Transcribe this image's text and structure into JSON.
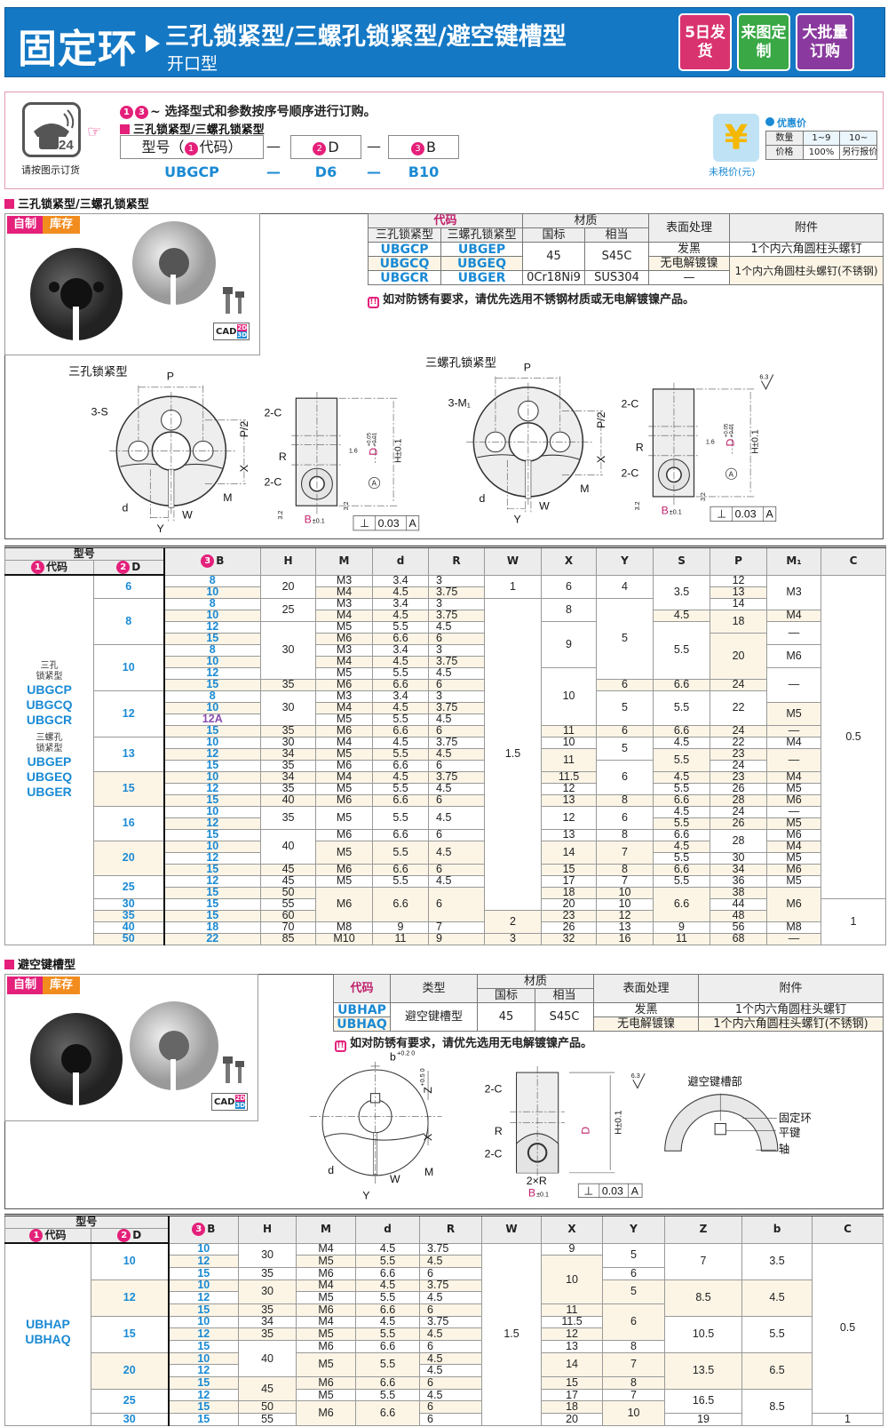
{
  "header": {
    "title": "固定环",
    "subtitle": "三孔锁紧型/三螺孔锁紧型/避空键槽型",
    "subtitle2": "开口型",
    "badges": [
      {
        "label": "5日发货",
        "color": "#d9336f"
      },
      {
        "label": "来图定制",
        "color": "#39a845"
      },
      {
        "label": "大批量订购",
        "color": "#8a3a9e"
      }
    ]
  },
  "order": {
    "phone_caption": "请按图示订货",
    "instruction": "~ 选择型式和参数按序号顺序进行订购。",
    "num1": "1",
    "num2": "2",
    "num3": "3",
    "type_label": "三孔锁紧型/三螺孔锁紧型",
    "box_code": "型号（",
    "box_code_tail": "代码）",
    "box_d": "D",
    "box_b": "B",
    "dash": "—",
    "example_code": "UBGCP",
    "example_d": "D6",
    "example_b": "B10",
    "price_caption": "未税价(元)",
    "discount_label": "优惠价",
    "price_table": [
      [
        "数量",
        "1~9",
        "10~"
      ],
      [
        "价格",
        "100%",
        "另行报价"
      ]
    ]
  },
  "section1": {
    "label": "三孔锁紧型/三螺孔锁紧型",
    "tag_a": "自制",
    "tag_b": "库存",
    "cad": "CAD",
    "cad_2d": "2D",
    "cad_3d": "3D",
    "spec": {
      "h_code": "代码",
      "h_material": "材质",
      "h_surface": "表面处理",
      "h_accessory": "附件",
      "h_type1": "三孔锁紧型",
      "h_type2": "三螺孔锁紧型",
      "h_gb": "国标",
      "h_eq": "相当",
      "rows": [
        [
          "UBGCP",
          "UBGEP"
        ],
        [
          "UBGCQ",
          "UBGEQ"
        ],
        [
          "UBGCR",
          "UBGER"
        ]
      ],
      "mat1_gb": "45",
      "mat1_eq": "S45C",
      "mat2_gb": "0Cr18Ni9",
      "mat2_eq": "SUS304",
      "surf1": "发黑",
      "surf2": "无电解镀镍",
      "surf3": "—",
      "acc1": "1个内六角圆柱头螺钉",
      "acc2": "1个内六角圆柱头螺钉(不锈钢)"
    },
    "note": "如对防锈有要求，请优先选用不锈钢材质或无电解镀镍产品。"
  },
  "drawings": {
    "lock3": {
      "title": "三孔锁紧型",
      "holes": "3-S"
    },
    "lock3m": {
      "title": "三螺孔锁紧型",
      "holes": "3-M₁"
    },
    "labels": {
      "P": "P",
      "P2": "P/2",
      "X": "X",
      "d": "d",
      "W": "W",
      "Y": "Y",
      "M": "M",
      "C": "2-C",
      "R": "R",
      "B": "B",
      "Btol": "±0.1",
      "H": "H±0.1",
      "D": "D",
      "Dtol_up": "+0.05",
      "Dtol_lo": "+0.01",
      "r16": "1.6",
      "r32": "3.2",
      "r63": "6.3",
      "tol": "0.03",
      "datum": "A",
      "perp": "⊥"
    },
    "keyway": {
      "b": "b",
      "btol": "+0.2 0",
      "Z": "Z",
      "Ztol": "+0.5 0",
      "twoR": "2×R",
      "detail": "避空键槽部",
      "ring": "固定环",
      "key": "平键",
      "shaft": "轴"
    }
  },
  "table1": {
    "h_model": "型号",
    "h_code": "代码",
    "h_code_num": "1",
    "h_D": "D",
    "h_D_num": "2",
    "h_B": "B",
    "h_B_num": "3",
    "columns": [
      "H",
      "M",
      "d",
      "R",
      "W",
      "X",
      "Y",
      "S",
      "P",
      "M₁",
      "C"
    ],
    "code_groups": [
      {
        "type": "三孔 锁紧型",
        "codes": [
          "UBGCP",
          "UBGCQ",
          "UBGCR"
        ]
      },
      {
        "type": "三螺孔 锁紧型",
        "codes": [
          "UBGEP",
          "UBGEQ",
          "UBGER"
        ]
      }
    ],
    "rows": [
      [
        "6",
        "8",
        "20",
        "M3",
        "3.4",
        "3",
        "1",
        "6",
        "4",
        "3.5",
        "12",
        "M3",
        "0.5"
      ],
      [
        null,
        "10",
        null,
        "M4",
        "4.5",
        "3.75",
        null,
        null,
        null,
        null,
        "13",
        null,
        null
      ],
      [
        "8",
        "8",
        "25",
        "M3",
        "3.4",
        "3",
        "1.5",
        "8",
        "5",
        null,
        "14",
        null,
        null
      ],
      [
        null,
        "10",
        null,
        "M4",
        "4.5",
        "3.75",
        null,
        null,
        null,
        "4.5",
        "18",
        "M4",
        null
      ],
      [
        null,
        "12",
        "30",
        "M5",
        "5.5",
        "4.5",
        null,
        "9",
        null,
        "5.5",
        null,
        "—",
        null
      ],
      [
        null,
        "15",
        null,
        "M6",
        "6.6",
        "6",
        null,
        null,
        null,
        null,
        "20",
        null,
        null
      ],
      [
        "10",
        "8",
        null,
        "M3",
        "3.4",
        "3",
        null,
        null,
        null,
        null,
        null,
        "M6",
        null
      ],
      [
        null,
        "10",
        null,
        "M4",
        "4.5",
        "3.75",
        null,
        null,
        null,
        null,
        null,
        null,
        null
      ],
      [
        null,
        "12",
        null,
        "M5",
        "5.5",
        "4.5",
        null,
        "10",
        null,
        null,
        null,
        "—",
        null
      ],
      [
        null,
        "15",
        "35",
        "M6",
        "6.6",
        "6",
        null,
        null,
        "6",
        "6.6",
        "24",
        null,
        null
      ],
      [
        "12",
        "8",
        "30",
        "M3",
        "3.4",
        "3",
        null,
        null,
        "5",
        "5.5",
        "22",
        null,
        null
      ],
      [
        null,
        "10",
        null,
        "M4",
        "4.5",
        "3.75",
        null,
        null,
        null,
        null,
        null,
        "M5",
        null
      ],
      [
        null,
        "12A",
        null,
        "M5",
        "5.5",
        "4.5",
        null,
        null,
        null,
        null,
        null,
        null,
        null
      ],
      [
        null,
        "15",
        "35",
        "M6",
        "6.6",
        "6",
        null,
        "11",
        "6",
        "6.6",
        "24",
        "—",
        null
      ],
      [
        "13",
        "10",
        "30",
        "M4",
        "4.5",
        "3.75",
        null,
        "10",
        "5",
        "4.5",
        "22",
        "M4",
        null
      ],
      [
        null,
        "12",
        "34",
        "M5",
        "5.5",
        "4.5",
        null,
        "11",
        null,
        "5.5",
        "23",
        "—",
        null
      ],
      [
        null,
        "15",
        "35",
        "M6",
        "6.6",
        "6",
        null,
        null,
        "6",
        null,
        "24",
        null,
        null
      ],
      [
        "15",
        "10",
        "34",
        "M4",
        "4.5",
        "3.75",
        null,
        "11.5",
        null,
        "4.5",
        "23",
        "M4",
        null
      ],
      [
        null,
        "12",
        "35",
        "M5",
        "5.5",
        "4.5",
        null,
        "12",
        null,
        "5.5",
        "26",
        "M5",
        null
      ],
      [
        null,
        "15",
        "40",
        "M6",
        "6.6",
        "6",
        null,
        "13",
        "8",
        "6.6",
        "28",
        "M6",
        null
      ],
      [
        "16",
        "10",
        "35",
        "M5",
        "5.5",
        "4.5",
        null,
        "12",
        "6",
        "4.5",
        "24",
        "—",
        null
      ],
      [
        null,
        "12",
        null,
        null,
        null,
        null,
        null,
        null,
        null,
        "5.5",
        "26",
        "M5",
        null
      ],
      [
        null,
        "15",
        "40",
        "M6",
        "6.6",
        "6",
        null,
        "13",
        "8",
        "6.6",
        "28",
        "M6",
        null
      ],
      [
        "20",
        "10",
        null,
        "M5",
        "5.5",
        "4.5",
        null,
        "14",
        "7",
        "4.5",
        null,
        "M4",
        null
      ],
      [
        null,
        "12",
        null,
        null,
        null,
        null,
        null,
        null,
        null,
        "5.5",
        "30",
        "M5",
        null
      ],
      [
        null,
        "15",
        "45",
        "M6",
        "6.6",
        "6",
        null,
        "15",
        "8",
        "6.6",
        "34",
        "M6",
        null
      ],
      [
        "25",
        "12",
        "45",
        "M5",
        "5.5",
        "4.5",
        null,
        "17",
        "7",
        "5.5",
        "36",
        "M5",
        null
      ],
      [
        null,
        "15",
        "50",
        "M6",
        "6.6",
        "6",
        null,
        "18",
        "10",
        "6.6",
        "38",
        "M6",
        null
      ],
      [
        "30",
        "15",
        "55",
        null,
        null,
        null,
        null,
        "20",
        "10",
        null,
        "44",
        null,
        "1"
      ],
      [
        "35",
        "15",
        "60",
        null,
        null,
        null,
        "2",
        "23",
        "12",
        null,
        "48",
        null,
        null
      ],
      [
        "40",
        "18",
        "70",
        "M8",
        "9",
        "7",
        null,
        "26",
        "13",
        "9",
        "56",
        "M8",
        null
      ],
      [
        "50",
        "22",
        "85",
        "M10",
        "11",
        "9",
        "3",
        "32",
        "16",
        "11",
        "68",
        "—",
        null
      ]
    ]
  },
  "section2": {
    "label": "避空键槽型",
    "tag_a": "自制",
    "tag_b": "库存",
    "spec": {
      "h_code": "代码",
      "h_type": "类型",
      "h_material": "材质",
      "h_gb": "国标",
      "h_eq": "相当",
      "h_surface": "表面处理",
      "h_accessory": "附件",
      "codes": [
        "UBHAP",
        "UBHAQ"
      ],
      "type": "避空键槽型",
      "mat_gb": "45",
      "mat_eq": "S45C",
      "surf1": "发黑",
      "surf2": "无电解镀镍",
      "acc1": "1个内六角圆柱头螺钉",
      "acc2": "1个内六角圆柱头螺钉(不锈钢)"
    },
    "note": "如对防锈有要求，请优先选用无电解镀镍产品。"
  },
  "table2": {
    "h_model": "型号",
    "h_code": "代码",
    "h_code_num": "1",
    "h_D": "D",
    "h_D_num": "2",
    "h_B": "B",
    "h_B_num": "3",
    "columns": [
      "H",
      "M",
      "d",
      "R",
      "W",
      "X",
      "Y",
      "Z",
      "b",
      "C"
    ],
    "code_groups": [
      {
        "type": "",
        "codes": [
          "UBHAP",
          "UBHAQ"
        ]
      }
    ],
    "rows": [
      [
        "10",
        "10",
        "30",
        "M4",
        "4.5",
        "3.75",
        "1.5",
        "9",
        "5",
        "7",
        "3.5",
        "0.5"
      ],
      [
        null,
        "12",
        null,
        "M5",
        "5.5",
        "4.5",
        null,
        "10",
        null,
        null,
        null,
        null
      ],
      [
        null,
        "15",
        "35",
        "M6",
        "6.6",
        "6",
        null,
        null,
        "6",
        null,
        null,
        null
      ],
      [
        "12",
        "10",
        "30",
        "M4",
        "4.5",
        "3.75",
        null,
        null,
        "5",
        "8.5",
        "4.5",
        null
      ],
      [
        null,
        "12",
        null,
        "M5",
        "5.5",
        "4.5",
        null,
        null,
        null,
        null,
        null,
        null
      ],
      [
        null,
        "15",
        "35",
        "M6",
        "6.6",
        "6",
        null,
        "11",
        "6",
        null,
        null,
        null
      ],
      [
        "15",
        "10",
        "34",
        "M4",
        "4.5",
        "3.75",
        null,
        "11.5",
        null,
        "10.5",
        "5.5",
        null
      ],
      [
        null,
        "12",
        "35",
        "M5",
        "5.5",
        "4.5",
        null,
        "12",
        null,
        null,
        null,
        null
      ],
      [
        null,
        "15",
        "40",
        "M6",
        "6.6",
        "6",
        null,
        "13",
        "8",
        null,
        null,
        null
      ],
      [
        "20",
        "10",
        null,
        "M5",
        "5.5",
        "4.5",
        null,
        "14",
        "7",
        "13.5",
        "6.5",
        null
      ],
      [
        null,
        "12",
        null,
        null,
        null,
        "4.5",
        null,
        null,
        null,
        null,
        null,
        null
      ],
      [
        null,
        "15",
        "45",
        "M6",
        "6.6",
        "6",
        null,
        "15",
        "8",
        null,
        null,
        null
      ],
      [
        "25",
        "12",
        null,
        "M5",
        "5.5",
        "4.5",
        null,
        "17",
        "7",
        "16.5",
        "8.5",
        null
      ],
      [
        null,
        "15",
        "50",
        "M6",
        "6.6",
        "6",
        null,
        "18",
        "10",
        null,
        null,
        null
      ],
      [
        "30",
        "15",
        "55",
        null,
        null,
        "6",
        null,
        "20",
        null,
        "19",
        null,
        "1"
      ]
    ]
  },
  "colors": {
    "brand_blue": "#1478c4",
    "accent_pink": "#e4207a",
    "code_blue": "#1a8ad4",
    "tag_red": "#e4207a",
    "tag_orange": "#f28c1e"
  }
}
